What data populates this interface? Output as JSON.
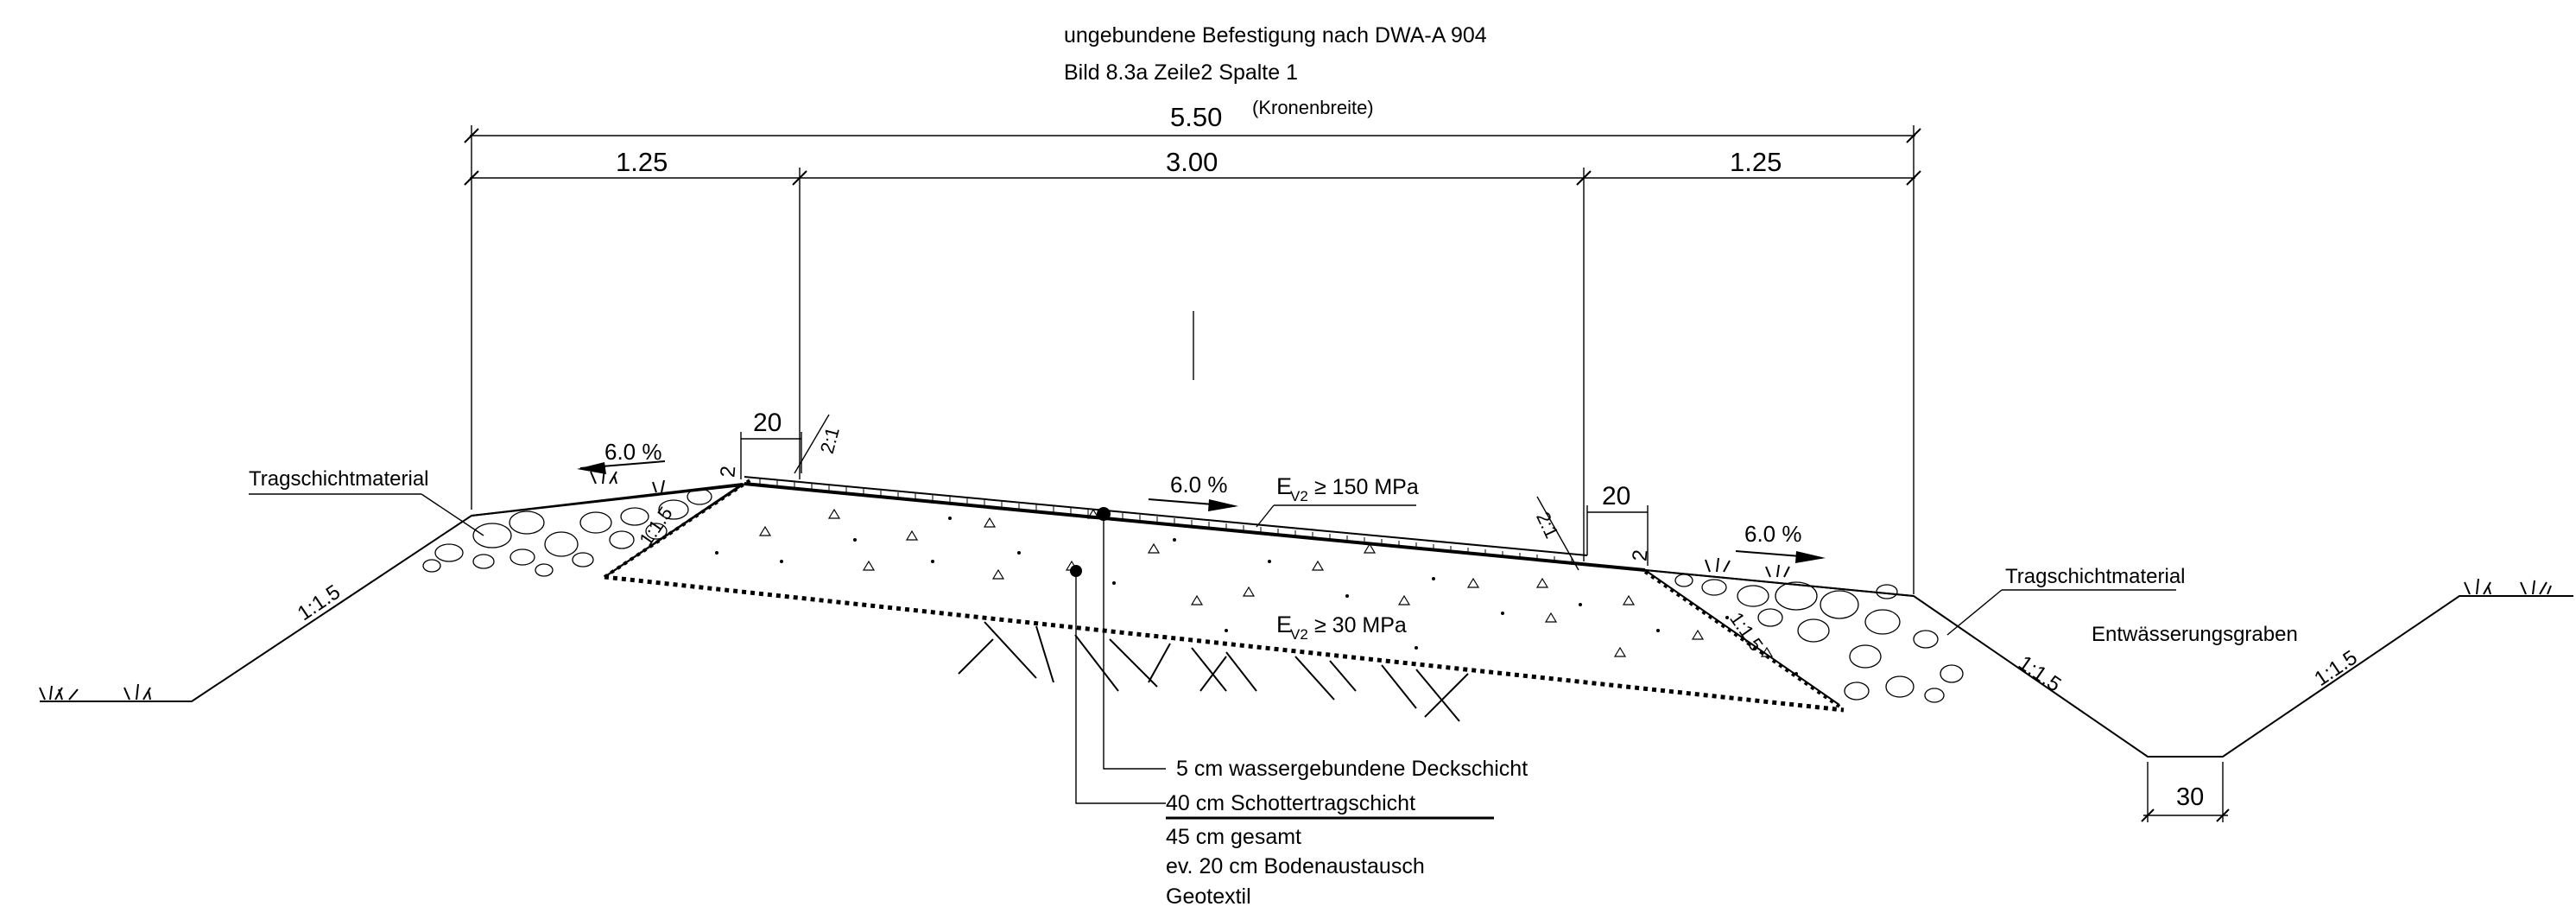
{
  "header": {
    "line1": "ungebundene Befestigung nach DWA-A 904",
    "line2": "Bild 8.3a  Zeile2 Spalte 1"
  },
  "dimensions": {
    "total": "5.50",
    "total_note": "(Kronenbreite)",
    "left": "1.25",
    "center": "3.00",
    "right": "1.25",
    "shoulder_left": "20",
    "shoulder_right": "20",
    "edge_left": "2",
    "edge_right": "2",
    "ditch_bottom": "30"
  },
  "slopes": {
    "slope_21_left": "2:1",
    "slope_21_right": "2:1",
    "inner_left": "1:1.5",
    "inner_right": "1:1.5",
    "outer_left": "1:1.5",
    "outer_right": "1:1.5",
    "ditch_right": "1:1.5"
  },
  "gradients": {
    "left_shoulder": "6.0 %",
    "road": "6.0 %",
    "right_shoulder": "6.0 %"
  },
  "materials": {
    "left": "Tragschichtmaterial",
    "right": "Tragschichtmaterial",
    "ditch": "Entwässerungsgraben"
  },
  "moduli": {
    "top": "E",
    "top_sub": "V2",
    "top_value": "≥ 150 MPa",
    "bottom": "E",
    "bottom_sub": "V2",
    "bottom_value": "≥ 30 MPa"
  },
  "layers": {
    "l1": "5 cm wassergebundene Deckschicht",
    "l2": "40 cm Schottertragschicht",
    "l3": "45 cm gesamt",
    "l4": "ev. 20  cm Bodenaustausch",
    "l5": "Geotextil"
  }
}
